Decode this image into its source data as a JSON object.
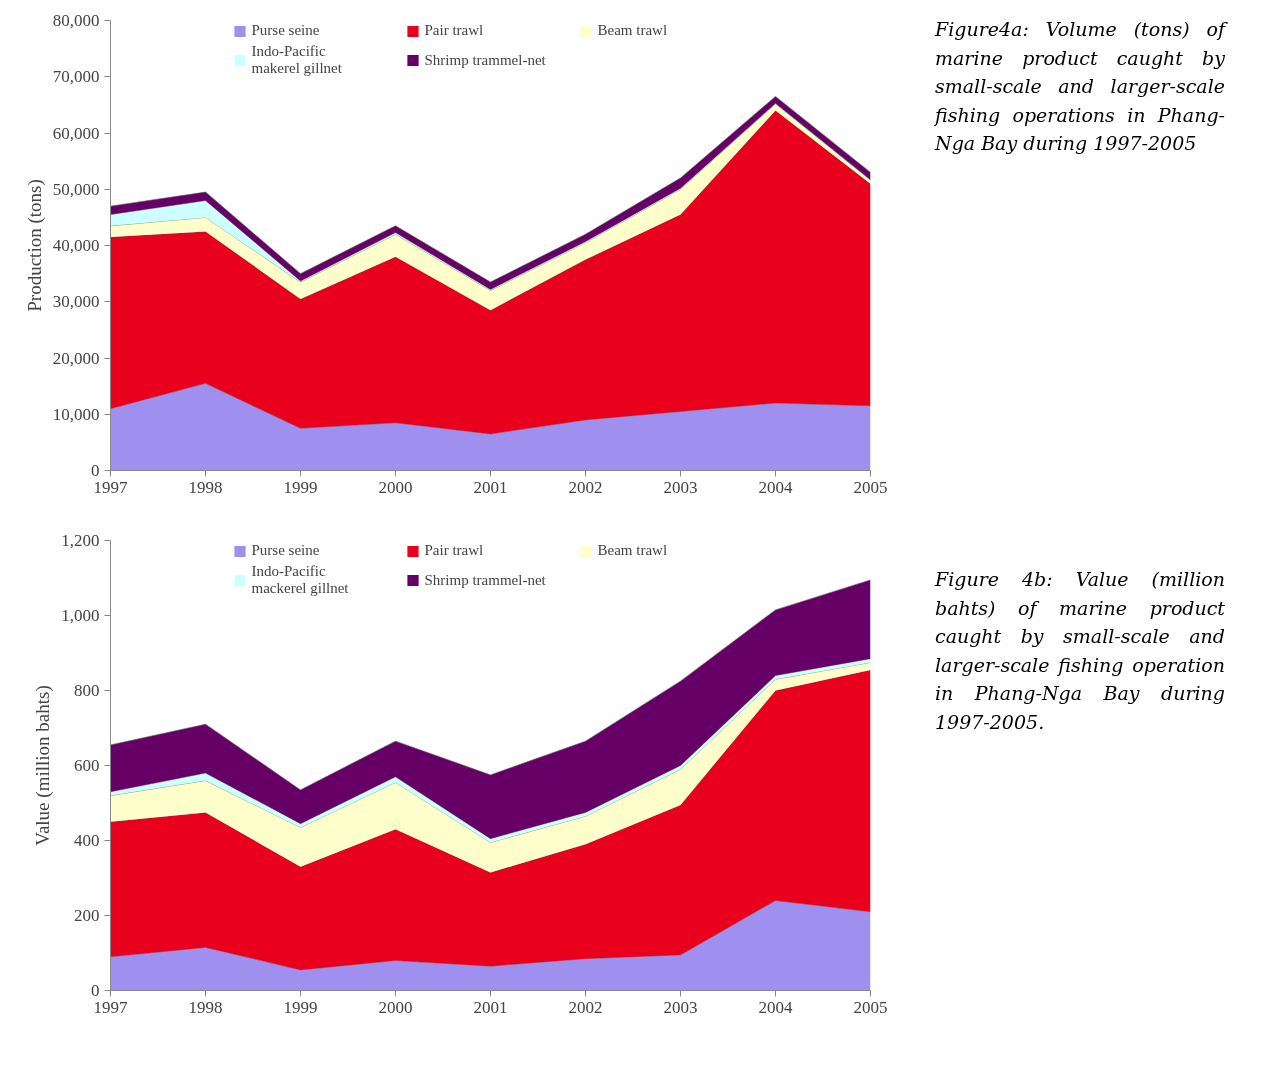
{
  "chart_data": [
    {
      "type": "area",
      "stacked": true,
      "ylabel": "Production (tons)",
      "categories": [
        "1997",
        "1998",
        "1999",
        "2000",
        "2001",
        "2002",
        "2003",
        "2004",
        "2005"
      ],
      "series": [
        {
          "name": "Purse seine",
          "color": "#9f8fef",
          "values": [
            11000,
            15500,
            7500,
            8500,
            6500,
            9000,
            10500,
            12000,
            11500
          ]
        },
        {
          "name": "Pair trawl",
          "color": "#e8001c",
          "values": [
            30500,
            27000,
            23000,
            29500,
            22000,
            28500,
            35000,
            52000,
            39500
          ]
        },
        {
          "name": "Beam trawl",
          "color": "#ffffcc",
          "values": [
            2000,
            2500,
            3000,
            4000,
            3500,
            3000,
            4500,
            1200,
            600
          ]
        },
        {
          "name": "Indo-Pacific\nmakerel gillnet",
          "color": "#ccffff",
          "values": [
            2000,
            3000,
            200,
            300,
            200,
            200,
            200,
            100,
            100
          ]
        },
        {
          "name": "Shrimp trammel-net",
          "color": "#660066",
          "values": [
            1500,
            1500,
            1300,
            1200,
            1300,
            1300,
            1800,
            1200,
            1300
          ]
        }
      ],
      "ylim": [
        0,
        80000
      ],
      "yticks": [
        0,
        {
          "value": 10000,
          "label": "10,000"
        },
        {
          "value": 20000,
          "label": "20,000"
        },
        {
          "value": 30000,
          "label": "30,000"
        },
        {
          "value": 40000,
          "label": "40,000"
        },
        {
          "value": 50000,
          "label": "50,000"
        },
        {
          "value": 60000,
          "label": "60,000"
        },
        {
          "value": 70000,
          "label": "70,000"
        },
        {
          "value": 80000,
          "label": "80,000"
        }
      ],
      "grid": false,
      "legend": "top",
      "annotations": [
        "Figure4a: Volume (tons) of marine product caught by small-scale and larger-scale fishing operations in Phang-Nga Bay during 1997-2005"
      ]
    },
    {
      "type": "area",
      "stacked": true,
      "ylabel": "Value (million bahts)",
      "categories": [
        "1997",
        "1998",
        "1999",
        "2000",
        "2001",
        "2002",
        "2003",
        "2004",
        "2005"
      ],
      "series": [
        {
          "name": "Purse seine",
          "color": "#9f8fef",
          "values": [
            90,
            115,
            55,
            80,
            65,
            85,
            95,
            240,
            210
          ]
        },
        {
          "name": "Pair trawl",
          "color": "#e8001c",
          "values": [
            360,
            360,
            275,
            350,
            250,
            305,
            400,
            560,
            645
          ]
        },
        {
          "name": "Beam trawl",
          "color": "#ffffcc",
          "values": [
            70,
            85,
            105,
            125,
            80,
            75,
            95,
            30,
            20
          ]
        },
        {
          "name": "Indo-Pacific\nmackerel gillnet",
          "color": "#ccffff",
          "values": [
            10,
            20,
            10,
            15,
            10,
            10,
            10,
            10,
            10
          ]
        },
        {
          "name": "Shrimp trammel-net",
          "color": "#660066",
          "values": [
            125,
            130,
            90,
            95,
            170,
            190,
            225,
            175,
            210
          ]
        }
      ],
      "ylim": [
        0,
        1200
      ],
      "yticks": [
        0,
        200,
        400,
        600,
        800,
        {
          "value": 1000,
          "label": "1,000"
        },
        {
          "value": 1200,
          "label": "1,200"
        }
      ],
      "grid": false,
      "legend": "top",
      "annotations": [
        "Figure 4b: Value (million bahts) of marine product caught by small-scale and larger-scale fishing operation in Phang-Nga Bay during 1997-2005."
      ]
    }
  ]
}
